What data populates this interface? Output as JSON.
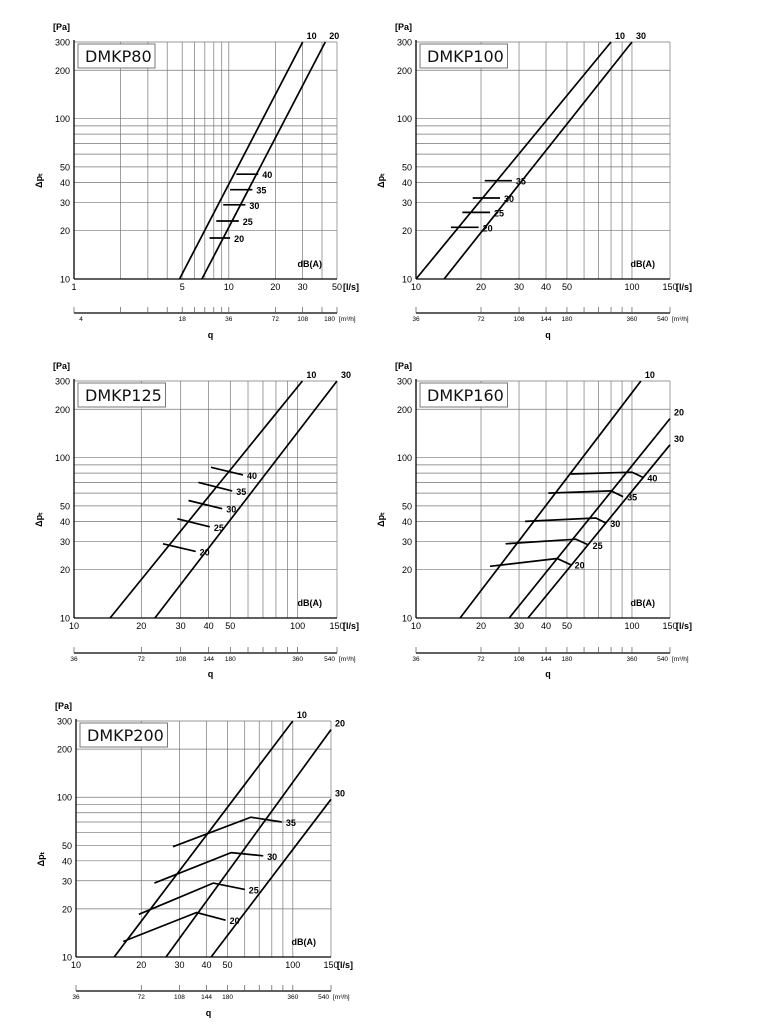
{
  "chart_data": [
    {
      "type": "line",
      "title": "DMKP80",
      "ylabel": "Δpₜ",
      "yunit": "[Pa]",
      "xlabel": "q",
      "xunit": "[l/s]",
      "x2unit": "[m³/h]",
      "x_scale": "log",
      "y_scale": "log",
      "xlim": [
        1,
        50
      ],
      "ylim": [
        10,
        300
      ],
      "y_ticks": [
        10,
        20,
        30,
        40,
        50,
        100,
        200,
        300
      ],
      "x_ticks": [
        1,
        5,
        10,
        20,
        30,
        50
      ],
      "x2_ticks": [
        4,
        18,
        36,
        72,
        108,
        180
      ],
      "db_label": "dB(A)",
      "series": [
        {
          "name": "10",
          "x": [
            4.8,
            30
          ],
          "y": [
            10,
            300
          ]
        },
        {
          "name": "20",
          "x": [
            6.7,
            42
          ],
          "y": [
            10,
            300
          ]
        }
      ],
      "noise_lines": [
        {
          "name": "20",
          "x": [
            7.5,
            10.2
          ],
          "y": [
            18,
            18
          ]
        },
        {
          "name": "25",
          "x": [
            8.3,
            11.6
          ],
          "y": [
            23,
            23
          ]
        },
        {
          "name": "30",
          "x": [
            9.2,
            12.8
          ],
          "y": [
            29,
            29
          ]
        },
        {
          "name": "35",
          "x": [
            10.2,
            14.2
          ],
          "y": [
            36,
            36
          ]
        },
        {
          "name": "40",
          "x": [
            11.2,
            15.5
          ],
          "y": [
            45,
            45
          ]
        }
      ]
    },
    {
      "type": "line",
      "title": "DMKP100",
      "ylabel": "Δpₜ",
      "yunit": "[Pa]",
      "xlabel": "q",
      "xunit": "[l/s]",
      "x2unit": "[m³/h]",
      "x_scale": "log",
      "y_scale": "log",
      "xlim": [
        10,
        150
      ],
      "ylim": [
        10,
        300
      ],
      "y_ticks": [
        10,
        20,
        30,
        40,
        50,
        100,
        200,
        300
      ],
      "x_ticks": [
        10,
        20,
        30,
        40,
        50,
        100,
        150
      ],
      "x2_ticks": [
        36,
        72,
        108,
        144,
        180,
        360,
        540
      ],
      "db_label": "dB(A)",
      "series": [
        {
          "name": "10",
          "x": [
            10,
            80
          ],
          "y": [
            10,
            300
          ]
        },
        {
          "name": "30",
          "x": [
            13.5,
            100
          ],
          "y": [
            10,
            300
          ]
        }
      ],
      "noise_lines": [
        {
          "name": "20",
          "x": [
            14.5,
            19.5
          ],
          "y": [
            21,
            21
          ]
        },
        {
          "name": "25",
          "x": [
            16.4,
            22
          ],
          "y": [
            26,
            26
          ]
        },
        {
          "name": "30",
          "x": [
            18.3,
            24.5
          ],
          "y": [
            32,
            32
          ]
        },
        {
          "name": "35",
          "x": [
            20.8,
            27.8
          ],
          "y": [
            41,
            41
          ]
        }
      ]
    },
    {
      "type": "line",
      "title": "DMKP125",
      "ylabel": "Δpₜ",
      "yunit": "[Pa]",
      "xlabel": "q",
      "xunit": "[l/s]",
      "x2unit": "[m³/h]",
      "x_scale": "log",
      "y_scale": "log",
      "xlim": [
        10,
        150
      ],
      "ylim": [
        10,
        300
      ],
      "y_ticks": [
        10,
        20,
        30,
        40,
        50,
        100,
        200,
        300
      ],
      "x_ticks": [
        10,
        20,
        30,
        40,
        50,
        100,
        150
      ],
      "x2_ticks": [
        36,
        72,
        108,
        144,
        180,
        360,
        540
      ],
      "db_label": "dB(A)",
      "series": [
        {
          "name": "10",
          "x": [
            14.5,
            105
          ],
          "y": [
            10,
            300
          ]
        },
        {
          "name": "30",
          "x": [
            23,
            150
          ],
          "y": [
            10,
            300
          ]
        }
      ],
      "noise_lines": [
        {
          "name": "20",
          "x": [
            25,
            35
          ],
          "y": [
            29,
            26
          ]
        },
        {
          "name": "25",
          "x": [
            29,
            40.5
          ],
          "y": [
            41.5,
            37
          ]
        },
        {
          "name": "30",
          "x": [
            32.5,
            46
          ],
          "y": [
            54,
            48
          ]
        },
        {
          "name": "35",
          "x": [
            36,
            51
          ],
          "y": [
            70,
            62
          ]
        },
        {
          "name": "40",
          "x": [
            41,
            57
          ],
          "y": [
            87,
            78
          ]
        }
      ]
    },
    {
      "type": "line",
      "title": "DMKP160",
      "ylabel": "Δpₜ",
      "yunit": "[Pa]",
      "xlabel": "q",
      "xunit": "[l/s]",
      "x2unit": "[m³/h]",
      "x_scale": "log",
      "y_scale": "log",
      "xlim": [
        10,
        150
      ],
      "ylim": [
        10,
        300
      ],
      "y_ticks": [
        10,
        20,
        30,
        40,
        50,
        100,
        200,
        300
      ],
      "x_ticks": [
        10,
        20,
        30,
        40,
        50,
        100,
        150
      ],
      "x2_ticks": [
        36,
        72,
        108,
        144,
        180,
        360,
        540
      ],
      "db_label": "dB(A)",
      "series": [
        {
          "name": "10",
          "x": [
            16,
            110
          ],
          "y": [
            10,
            300
          ]
        },
        {
          "name": "20",
          "x": [
            27,
            150
          ],
          "y": [
            10,
            175
          ]
        },
        {
          "name": "30",
          "x": [
            33,
            150
          ],
          "y": [
            10,
            120
          ]
        }
      ],
      "noise_lines": [
        {
          "name": "20",
          "x": [
            22,
            45,
            52
          ],
          "y": [
            21,
            23.5,
            21.5
          ]
        },
        {
          "name": "25",
          "x": [
            26,
            55,
            63
          ],
          "y": [
            29,
            31,
            28.5
          ]
        },
        {
          "name": "30",
          "x": [
            32,
            68,
            76
          ],
          "y": [
            40,
            42,
            39
          ]
        },
        {
          "name": "35",
          "x": [
            41,
            80,
            91
          ],
          "y": [
            60,
            62,
            57
          ]
        },
        {
          "name": "40",
          "x": [
            52,
            100,
            113
          ],
          "y": [
            79,
            81,
            75
          ]
        }
      ]
    },
    {
      "type": "line",
      "title": "DMKP200",
      "ylabel": "Δpₜ",
      "yunit": "[Pa]",
      "xlabel": "q",
      "xunit": "[l/s]",
      "x2unit": "[m³/h]",
      "x_scale": "log",
      "y_scale": "log",
      "xlim": [
        10,
        150
      ],
      "ylim": [
        10,
        300
      ],
      "y_ticks": [
        10,
        20,
        30,
        40,
        50,
        100,
        200,
        300
      ],
      "x_ticks": [
        10,
        20,
        30,
        40,
        50,
        100,
        150
      ],
      "x2_ticks": [
        36,
        72,
        108,
        144,
        180,
        360,
        540
      ],
      "db_label": "dB(A)",
      "series": [
        {
          "name": "10",
          "x": [
            15,
            100
          ],
          "y": [
            10,
            300
          ]
        },
        {
          "name": "20",
          "x": [
            26,
            150
          ],
          "y": [
            10,
            265
          ]
        },
        {
          "name": "30",
          "x": [
            42,
            150
          ],
          "y": [
            10,
            97
          ]
        }
      ],
      "noise_lines": [
        {
          "name": "20",
          "x": [
            16.5,
            36,
            49
          ],
          "y": [
            12.5,
            19,
            17
          ]
        },
        {
          "name": "25",
          "x": [
            19.5,
            43,
            60
          ],
          "y": [
            18.5,
            29,
            26.5
          ]
        },
        {
          "name": "30",
          "x": [
            23,
            52,
            73
          ],
          "y": [
            29,
            45,
            43
          ]
        },
        {
          "name": "35",
          "x": [
            28,
            64,
            89
          ],
          "y": [
            49,
            75,
            70
          ]
        }
      ]
    }
  ]
}
